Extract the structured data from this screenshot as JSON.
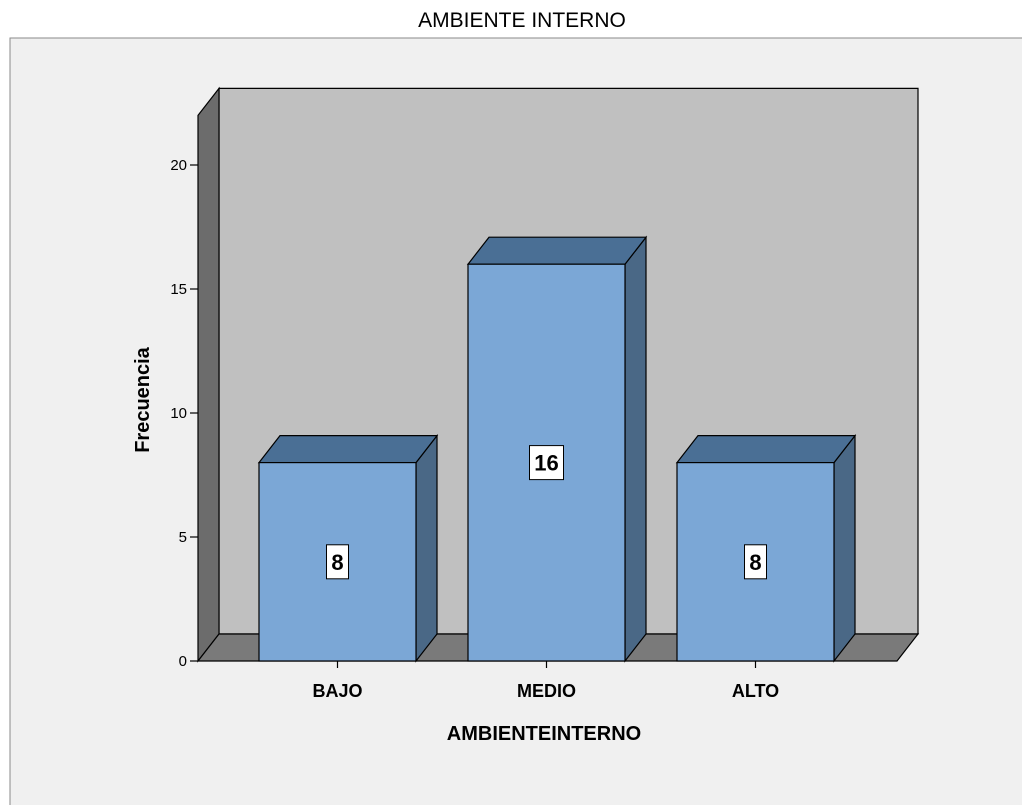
{
  "chart_data": {
    "type": "bar",
    "title": "AMBIENTE INTERNO",
    "xlabel": "AMBIENTEINTERNO",
    "ylabel": "Frecuencia",
    "categories": [
      "BAJO",
      "MEDIO",
      "ALTO"
    ],
    "values": [
      8,
      16,
      8
    ],
    "data_labels": [
      "8",
      "16",
      "8"
    ],
    "ylim": [
      0,
      22
    ],
    "yticks": [
      0,
      5,
      10,
      15,
      20
    ],
    "ytick_labels": [
      "0",
      "5",
      "10",
      "15",
      "20"
    ],
    "grid": false,
    "legend": "none",
    "style": "3d"
  },
  "colors": {
    "bar_front": "#7ba7d6",
    "bar_top": "#4a6f95",
    "bar_side": "#4a6886",
    "back_wall": "#c0c0c0",
    "side_wall": "#6c6c6c",
    "floor": "#7a7a7a",
    "plot_background": "#f0f0f0",
    "outline": "#000000"
  }
}
